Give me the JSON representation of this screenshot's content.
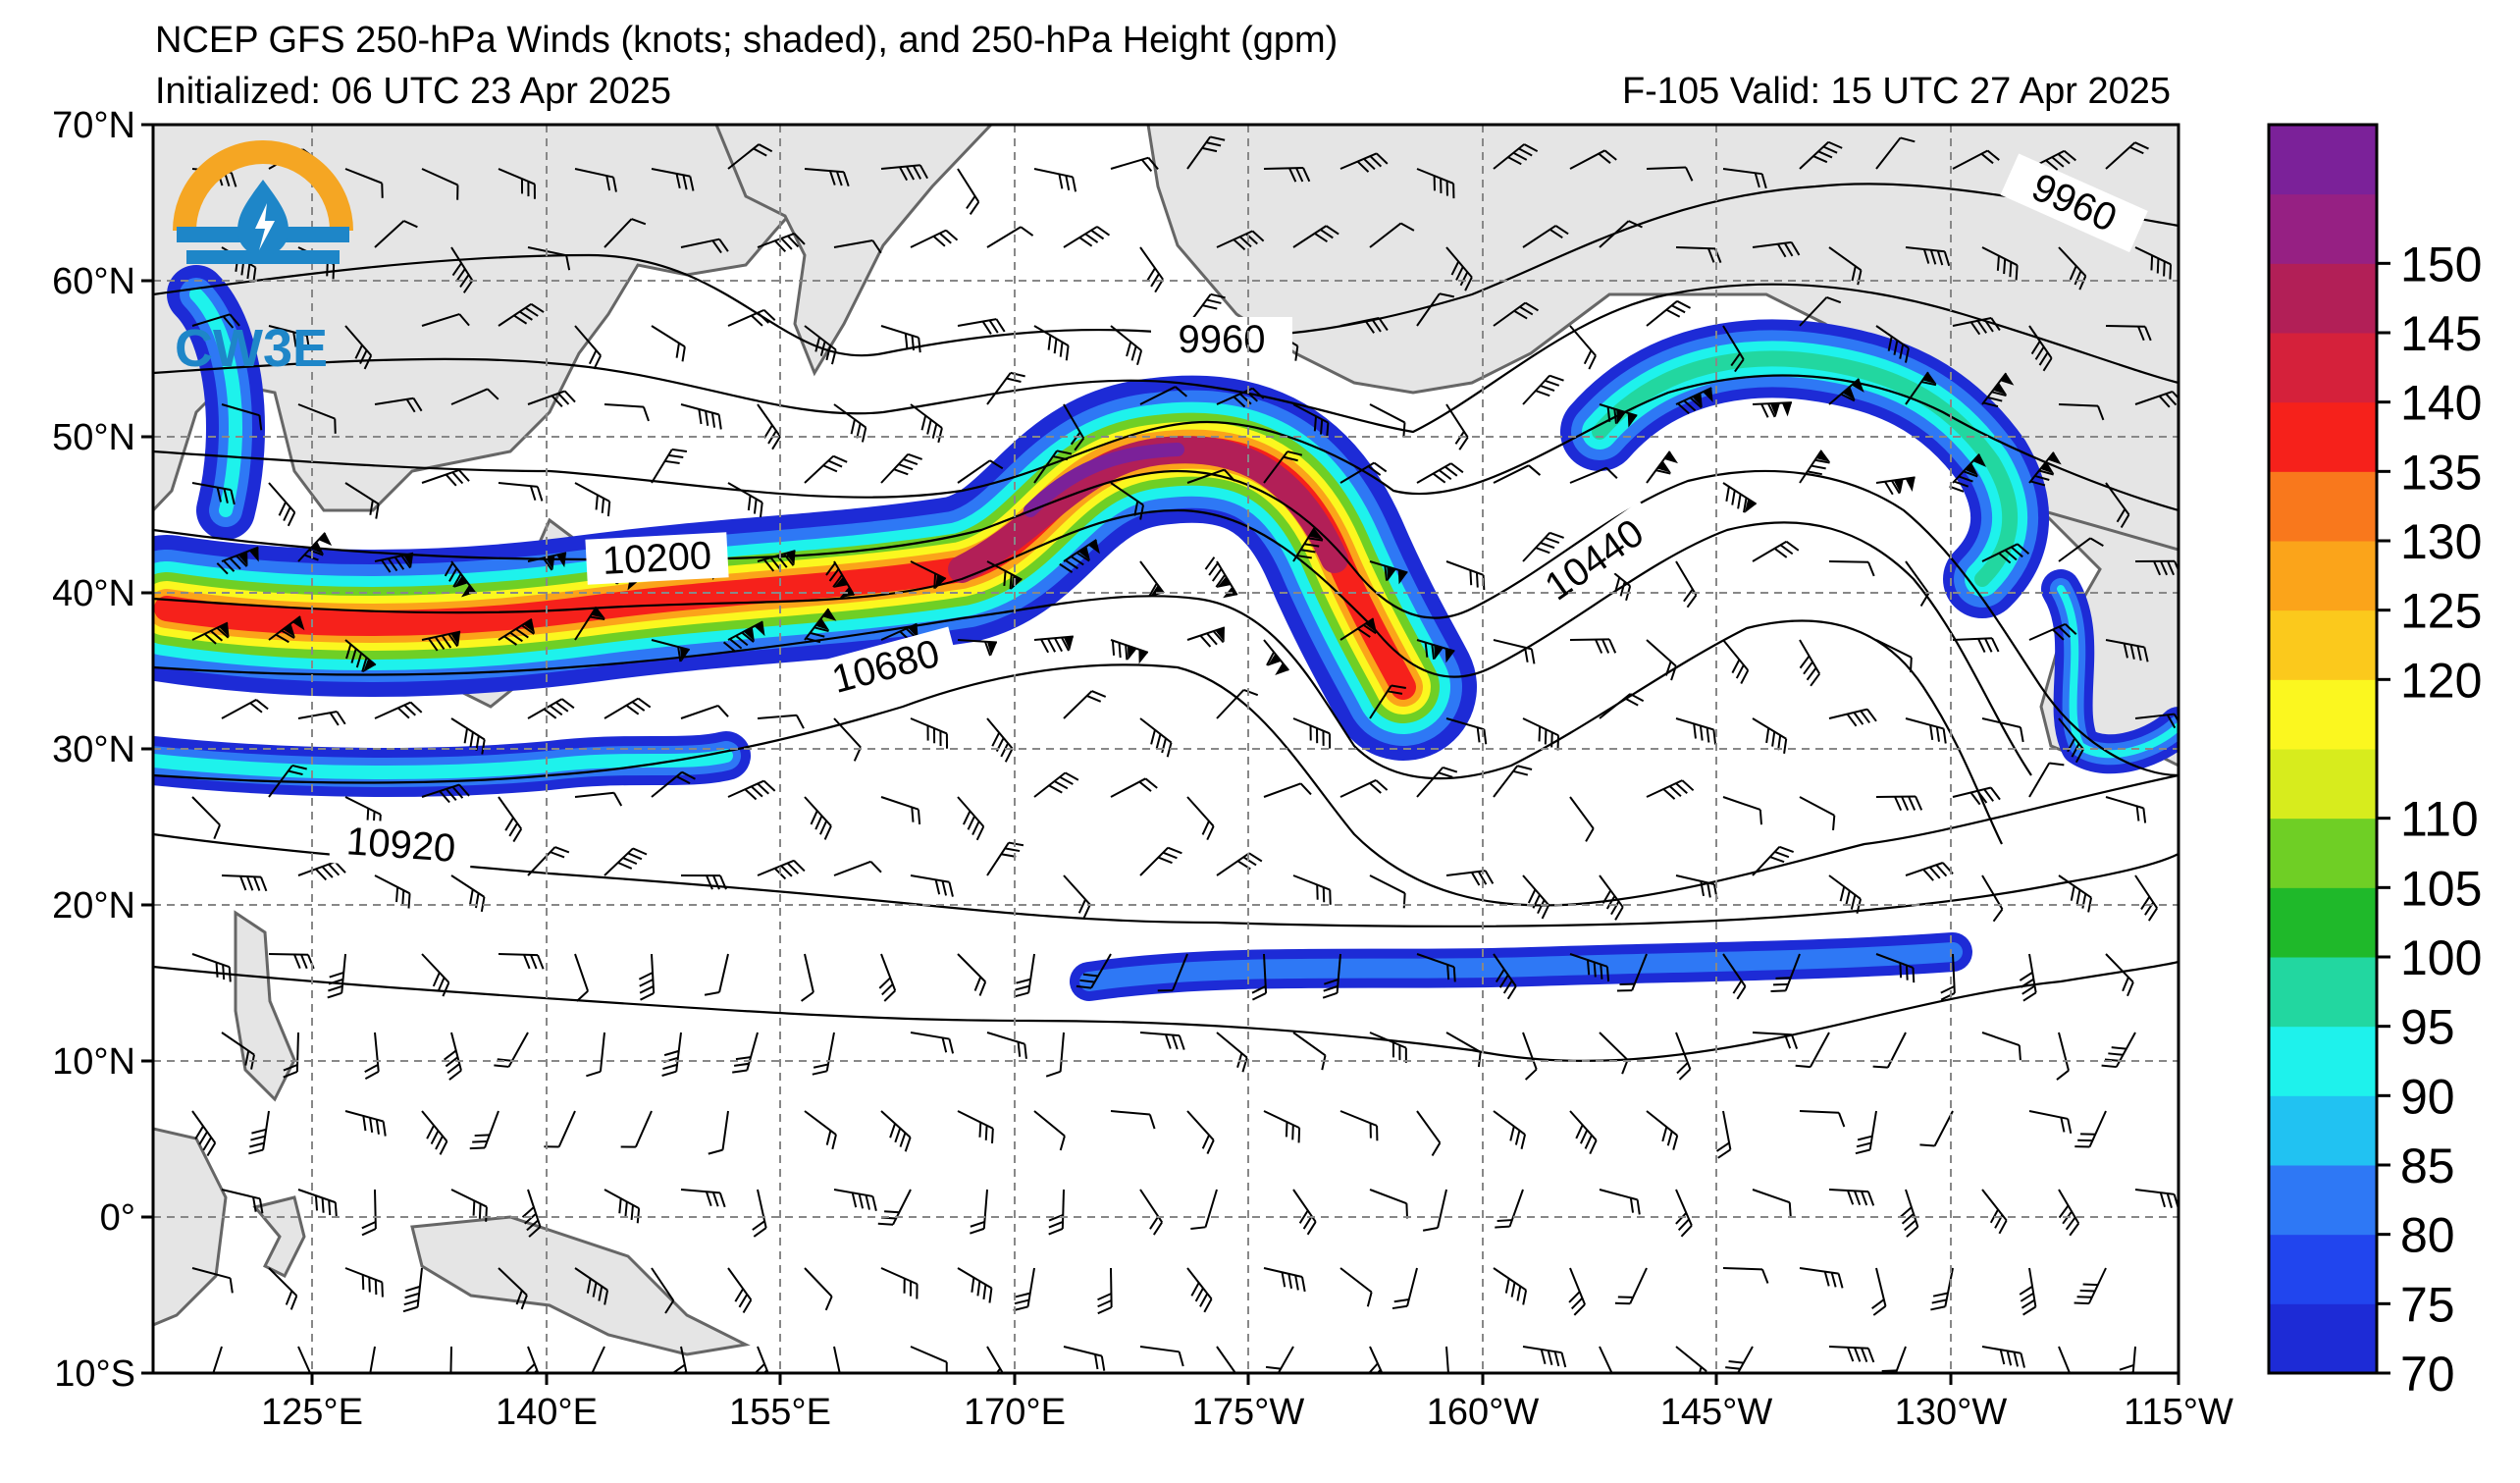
{
  "title": "NCEP GFS 250-hPa Winds (knots; shaded), and 250-hPa Height (gpm)",
  "initialized": "Initialized: 06 UTC 23 Apr 2025",
  "forecast": "F-105  Valid: 15 UTC 27 Apr 2025",
  "logo": {
    "text": "CW3E",
    "colors": {
      "ring": "#f5a623",
      "blue": "#1e86c8"
    }
  },
  "axes": {
    "lat_ticks": [
      "70°N",
      "60°N",
      "50°N",
      "40°N",
      "30°N",
      "20°N",
      "10°N",
      "0°",
      "10°S"
    ],
    "lon_ticks": [
      "125°E",
      "140°E",
      "155°E",
      "170°E",
      "175°W",
      "160°W",
      "145°W",
      "130°W",
      "115°W"
    ]
  },
  "colorbar": {
    "unit": "knots",
    "labels": [
      "70",
      "75",
      "80",
      "85",
      "90",
      "95",
      "100",
      "105",
      "110",
      "120",
      "125",
      "130",
      "135",
      "140",
      "145",
      "150"
    ],
    "colors": [
      "#1d2bd6",
      "#2145ee",
      "#2e78f5",
      "#21c2f2",
      "#1ef2ec",
      "#22d7a0",
      "#1fb92a",
      "#6fcf25",
      "#d7ec1d",
      "#fbf71f",
      "#fbc91c",
      "#fba41a",
      "#f9781c",
      "#f6211b",
      "#d5213b",
      "#b21f57",
      "#962083",
      "#7b2199"
    ]
  },
  "contour_labels": [
    {
      "text": "9960"
    },
    {
      "text": "9960"
    },
    {
      "text": "10200"
    },
    {
      "text": "10440"
    },
    {
      "text": "10680"
    },
    {
      "text": "10920"
    }
  ]
}
